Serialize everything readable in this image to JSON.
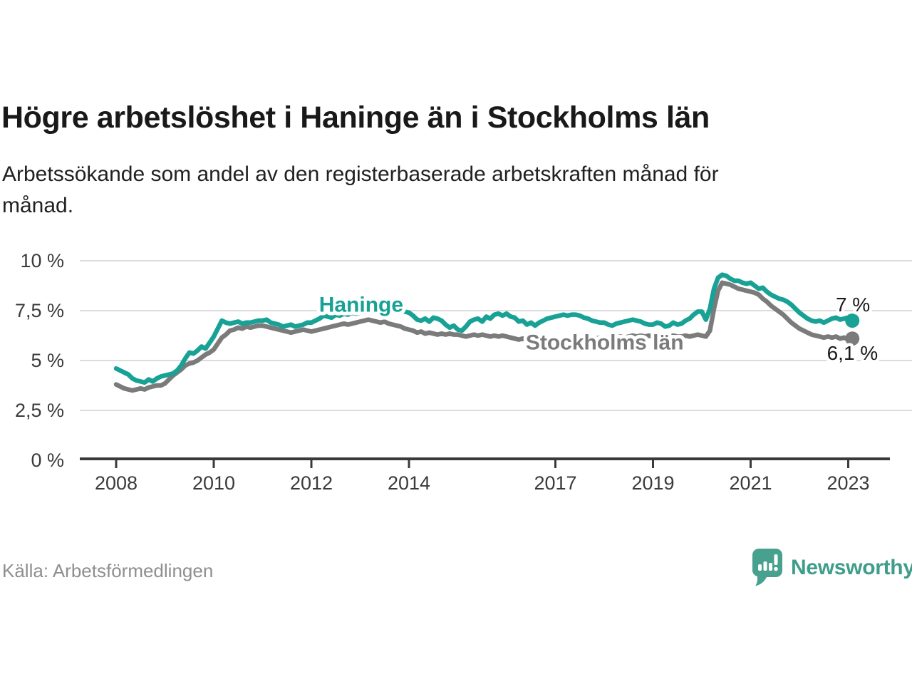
{
  "header": {
    "title": "Högre arbetslöshet i Haninge än i Stockholms län",
    "subtitle": "Arbetssökande som andel av den registerbaserade arbetskraften månad för\nmånad."
  },
  "footer": {
    "source": "Källa: Arbetsförmedlingen",
    "brand": "Newsworthy",
    "logo_icon": "speech-bubble-with-bar-chart-and-exclamation"
  },
  "colors": {
    "accent_teal": "#17a295",
    "series_gray": "#7b7b7b",
    "logo_teal": "#48a18f",
    "brand_text_teal": "#3f9d8b",
    "grid": "#dcdcdc",
    "axis": "#3a3a3a",
    "title_text": "#191919",
    "annotation_text": "#1a1a1a",
    "source_text": "#8f8f8f"
  },
  "chart_data": {
    "type": "line",
    "title": "Högre arbetslöshet i Haninge än i Stockholms län",
    "subtitle": "Arbetssökande som andel av den registerbaserade arbetskraften månad för månad.",
    "grid": true,
    "legend_position": "inline-labels",
    "x_axis": {
      "unit": "year",
      "interval": "monthly",
      "start_year": 2008,
      "end": "2023-02",
      "ticks": [
        2008,
        2010,
        2012,
        2014,
        2017,
        2019,
        2021,
        2023
      ]
    },
    "y_axis": {
      "unit": "%",
      "range": [
        0,
        10
      ],
      "ticks": [
        {
          "value": 0,
          "label": "0 %"
        },
        {
          "value": 2.5,
          "label": "2,5 %"
        },
        {
          "value": 5,
          "label": "5 %"
        },
        {
          "value": 7.5,
          "label": "7,5 %"
        },
        {
          "value": 10,
          "label": "10 %"
        }
      ]
    },
    "series": [
      {
        "name": "Haninge",
        "color": "#17a295",
        "end_label": "7 %",
        "end_value": 7.0,
        "label_anchor": {
          "year": 2013.02,
          "value": 7.45
        },
        "values": [
          4.6,
          4.5,
          4.4,
          4.3,
          4.1,
          4.0,
          3.95,
          3.9,
          4.05,
          3.95,
          4.1,
          4.2,
          4.25,
          4.3,
          4.35,
          4.5,
          4.75,
          5.1,
          5.4,
          5.35,
          5.5,
          5.7,
          5.6,
          5.9,
          6.2,
          6.6,
          7.0,
          6.9,
          6.85,
          6.9,
          6.95,
          6.85,
          6.9,
          6.9,
          6.95,
          7.0,
          7.0,
          7.05,
          6.9,
          6.85,
          6.8,
          6.7,
          6.75,
          6.8,
          6.7,
          6.75,
          6.8,
          6.9,
          6.9,
          7.0,
          7.1,
          7.25,
          7.2,
          7.15,
          7.3,
          7.25,
          7.35,
          7.3,
          7.4,
          7.35,
          7.4,
          7.45,
          7.4,
          7.5,
          7.45,
          7.5,
          7.4,
          7.45,
          7.5,
          7.45,
          7.5,
          7.45,
          7.4,
          7.25,
          7.05,
          7.0,
          7.1,
          6.95,
          7.15,
          7.1,
          7.0,
          6.8,
          6.65,
          6.75,
          6.55,
          6.5,
          6.7,
          6.95,
          7.05,
          7.1,
          6.95,
          7.2,
          7.1,
          7.3,
          7.35,
          7.25,
          7.35,
          7.2,
          7.15,
          6.95,
          7.0,
          6.8,
          6.9,
          6.75,
          6.9,
          7.0,
          7.1,
          7.15,
          7.2,
          7.25,
          7.3,
          7.25,
          7.3,
          7.3,
          7.25,
          7.15,
          7.1,
          7.0,
          6.95,
          6.9,
          6.9,
          6.8,
          6.75,
          6.85,
          6.9,
          6.95,
          7.0,
          7.05,
          7.0,
          6.95,
          6.85,
          6.8,
          6.8,
          6.9,
          6.85,
          6.7,
          6.75,
          6.9,
          6.8,
          6.85,
          7.0,
          7.1,
          7.3,
          7.45,
          7.45,
          7.05,
          7.6,
          8.6,
          9.15,
          9.3,
          9.25,
          9.1,
          9.0,
          9.0,
          8.9,
          8.85,
          8.9,
          8.75,
          8.6,
          8.65,
          8.45,
          8.3,
          8.2,
          8.1,
          8.05,
          7.95,
          7.8,
          7.6,
          7.4,
          7.25,
          7.1,
          7.0,
          6.95,
          7.0,
          6.9,
          7.0,
          7.1,
          7.15,
          7.05,
          7.1,
          7.15,
          7.0
        ]
      },
      {
        "name": "Stockholms län",
        "color": "#7b7b7b",
        "end_label": "6,1 %",
        "end_value": 6.1,
        "label_anchor": {
          "year": 2018.01,
          "value": 5.55
        },
        "values": [
          3.8,
          3.7,
          3.6,
          3.55,
          3.5,
          3.55,
          3.6,
          3.55,
          3.65,
          3.7,
          3.75,
          3.75,
          3.85,
          4.05,
          4.25,
          4.4,
          4.55,
          4.75,
          4.85,
          4.9,
          5.0,
          5.15,
          5.3,
          5.4,
          5.55,
          5.85,
          6.15,
          6.3,
          6.5,
          6.55,
          6.65,
          6.6,
          6.7,
          6.65,
          6.7,
          6.75,
          6.75,
          6.7,
          6.65,
          6.6,
          6.55,
          6.5,
          6.45,
          6.4,
          6.45,
          6.5,
          6.55,
          6.5,
          6.45,
          6.5,
          6.55,
          6.6,
          6.65,
          6.7,
          6.75,
          6.8,
          6.85,
          6.8,
          6.85,
          6.9,
          6.95,
          7.0,
          7.05,
          7.0,
          6.95,
          6.9,
          6.95,
          6.85,
          6.8,
          6.75,
          6.7,
          6.6,
          6.55,
          6.5,
          6.4,
          6.45,
          6.35,
          6.4,
          6.35,
          6.3,
          6.35,
          6.3,
          6.35,
          6.3,
          6.3,
          6.25,
          6.2,
          6.25,
          6.3,
          6.25,
          6.3,
          6.25,
          6.2,
          6.25,
          6.2,
          6.25,
          6.2,
          6.15,
          6.1,
          6.05,
          6.1,
          6.05,
          6.0,
          6.05,
          6.0,
          6.05,
          6.1,
          6.05,
          6.0,
          6.05,
          6.0,
          5.95,
          6.0,
          6.05,
          6.0,
          6.05,
          6.1,
          6.05,
          6.1,
          6.15,
          6.1,
          6.15,
          6.1,
          6.15,
          6.2,
          6.15,
          6.2,
          6.25,
          6.2,
          6.25,
          6.2,
          6.25,
          6.2,
          6.2,
          6.25,
          6.2,
          6.2,
          6.25,
          6.2,
          6.2,
          6.25,
          6.2,
          6.25,
          6.3,
          6.25,
          6.2,
          6.5,
          7.6,
          8.5,
          8.9,
          8.85,
          8.8,
          8.7,
          8.6,
          8.55,
          8.5,
          8.45,
          8.4,
          8.3,
          8.1,
          7.95,
          7.75,
          7.6,
          7.45,
          7.3,
          7.1,
          6.9,
          6.75,
          6.6,
          6.5,
          6.4,
          6.3,
          6.25,
          6.2,
          6.15,
          6.2,
          6.15,
          6.2,
          6.1,
          6.15,
          6.05,
          6.1
        ]
      }
    ]
  }
}
